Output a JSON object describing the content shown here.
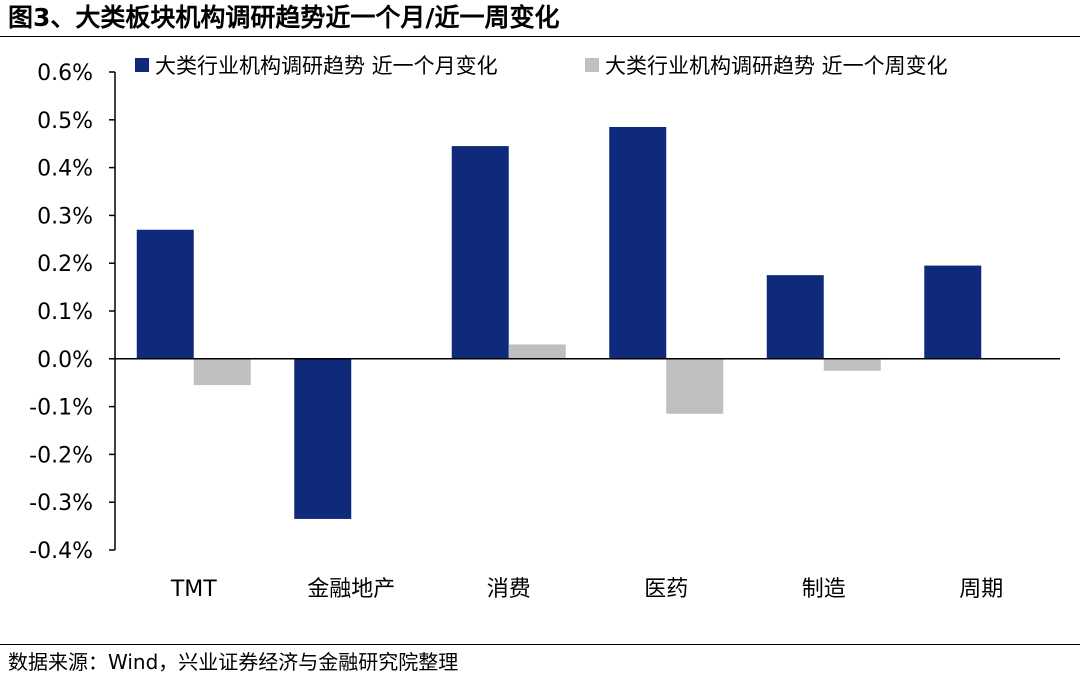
{
  "header": {
    "title": "图3、大类板块机构调研趋势近一个月/近一周变化"
  },
  "footer": {
    "source": "数据来源：Wind，兴业证券经济与金融研究院整理"
  },
  "colors": {
    "series_month": "#0f2a7a",
    "series_week": "#bfbfbf",
    "axis": "#000000"
  },
  "chart_data": {
    "type": "bar",
    "title": "",
    "xlabel": "",
    "ylabel": "",
    "categories": [
      "TMT",
      "金融地产",
      "消费",
      "医药",
      "制造",
      "周期"
    ],
    "series": [
      {
        "name": "大类行业机构调研趋势 近一个月变化",
        "values": [
          0.0027,
          -0.00335,
          0.00445,
          0.00485,
          0.00175,
          0.00195
        ]
      },
      {
        "name": "大类行业机构调研趋势 近一个周变化",
        "values": [
          -0.00055,
          0.0,
          0.0003,
          -0.00115,
          -0.00025,
          0.0
        ]
      }
    ],
    "ylim": [
      -0.004,
      0.006
    ],
    "yticks": [
      -0.004,
      -0.003,
      -0.002,
      -0.001,
      0.0,
      0.001,
      0.002,
      0.003,
      0.004,
      0.005,
      0.006
    ],
    "ytick_labels": [
      "-0.4%",
      "-0.3%",
      "-0.2%",
      "-0.1%",
      "0.0%",
      "0.1%",
      "0.2%",
      "0.3%",
      "0.4%",
      "0.5%",
      "0.6%"
    ],
    "grid": false,
    "legend_position": "top"
  }
}
